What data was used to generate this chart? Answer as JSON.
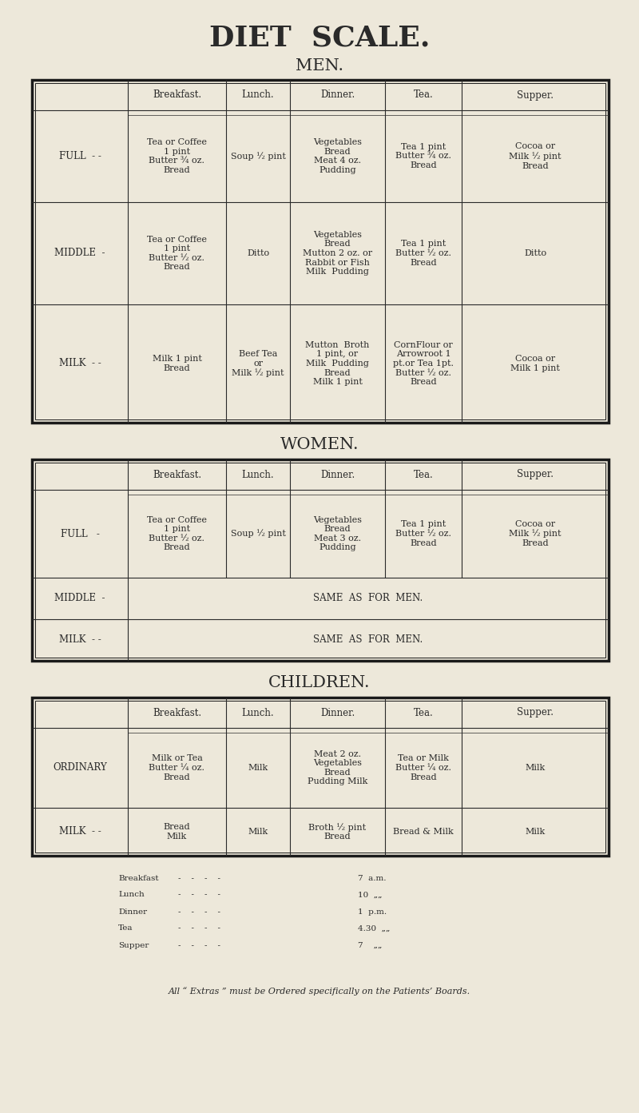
{
  "bg_color": "#ede8da",
  "text_color": "#2a2a2a",
  "title": "DIET  SCALE.",
  "title_fontsize": 26,
  "section_fontsize": 15,
  "header_fontsize": 8.5,
  "cell_fontsize": 8,
  "label_fontsize": 8.5,
  "small_fontsize": 7.5,
  "men_title": "MEN.",
  "women_title": "WOMEN.",
  "children_title": "CHILDREN.",
  "col_headers": [
    "Breakfast.",
    "Lunch.",
    "Dinner.",
    "Tea.",
    "Supper."
  ],
  "men_rows": [
    {
      "label": "FULL  - -",
      "breakfast": "Tea or Coffee\n1 pint\nButter ¾ oz.\nBread",
      "lunch": "Soup ½ pint",
      "dinner": "Vegetables\nBread\nMeat 4 oz.\nPudding",
      "tea": "Tea 1 pint\nButter ¾ oz.\nBread",
      "supper": "Cocoa or\nMilk ½ pint\nBread"
    },
    {
      "label": "MIDDLE  -",
      "breakfast": "Tea or Coffee\n1 pint\nButter ½ oz.\nBread",
      "lunch": "Ditto",
      "dinner": "Vegetables\nBread\nMutton 2 oz. or\nRabbit or Fish\nMilk  Pudding",
      "tea": "Tea 1 pint\nButter ½ oz.\nBread",
      "supper": "Ditto"
    },
    {
      "label": "MILK  - -",
      "breakfast": "Milk 1 pint\nBread",
      "lunch": "Beef Tea\nor\nMilk ½ pint",
      "dinner": "Mutton  Broth\n1 pint, or\nMilk  Pudding\nBread\nMilk 1 pint",
      "tea": "CornFlour or\nArrowroot 1\npt.or Tea 1pt.\nButter ½ oz.\nBread",
      "supper": "Cocoa or\nMilk 1 pint"
    }
  ],
  "women_rows": [
    {
      "label": "FULL   -",
      "breakfast": "Tea or Coffee\n1 pint\nButter ½ oz.\nBread",
      "lunch": "Soup ½ pint",
      "dinner": "Vegetables\nBread\nMeat 3 oz.\nPudding",
      "tea": "Tea 1 pint\nButter ½ oz.\nBread",
      "supper": "Cocoa or\nMilk ½ pint\nBread"
    },
    {
      "label": "MIDDLE  -",
      "colspan": "SAME  AS  FOR  MEN."
    },
    {
      "label": "MILK  - -",
      "colspan": "SAME  AS  FOR  MEN."
    }
  ],
  "children_rows": [
    {
      "label": "ORDINARY",
      "breakfast": "Milk or Tea\nButter ¼ oz.\nBread",
      "lunch": "Milk",
      "dinner": "Meat 2 oz.\nVegetables\nBread\nPudding Milk",
      "tea": "Tea or Milk\nButter ¼ oz.\nBread",
      "supper": "Milk"
    },
    {
      "label": "MILK  - -",
      "breakfast": "Bread\nMilk",
      "lunch": "Milk",
      "dinner": "Broth ½ pint\nBread",
      "tea": "Bread & Milk",
      "supper": "Milk"
    }
  ],
  "schedule": [
    [
      "Breakfast",
      "7  a.m."
    ],
    [
      "Lunch",
      "10  „„"
    ],
    [
      "Dinner",
      "1  p.m."
    ],
    [
      "Tea",
      "4.30  „„"
    ],
    [
      "Supper",
      "7    „„"
    ]
  ],
  "footer": "All “ Extras ” must be Ordered specifically on the Patients’ Boards."
}
